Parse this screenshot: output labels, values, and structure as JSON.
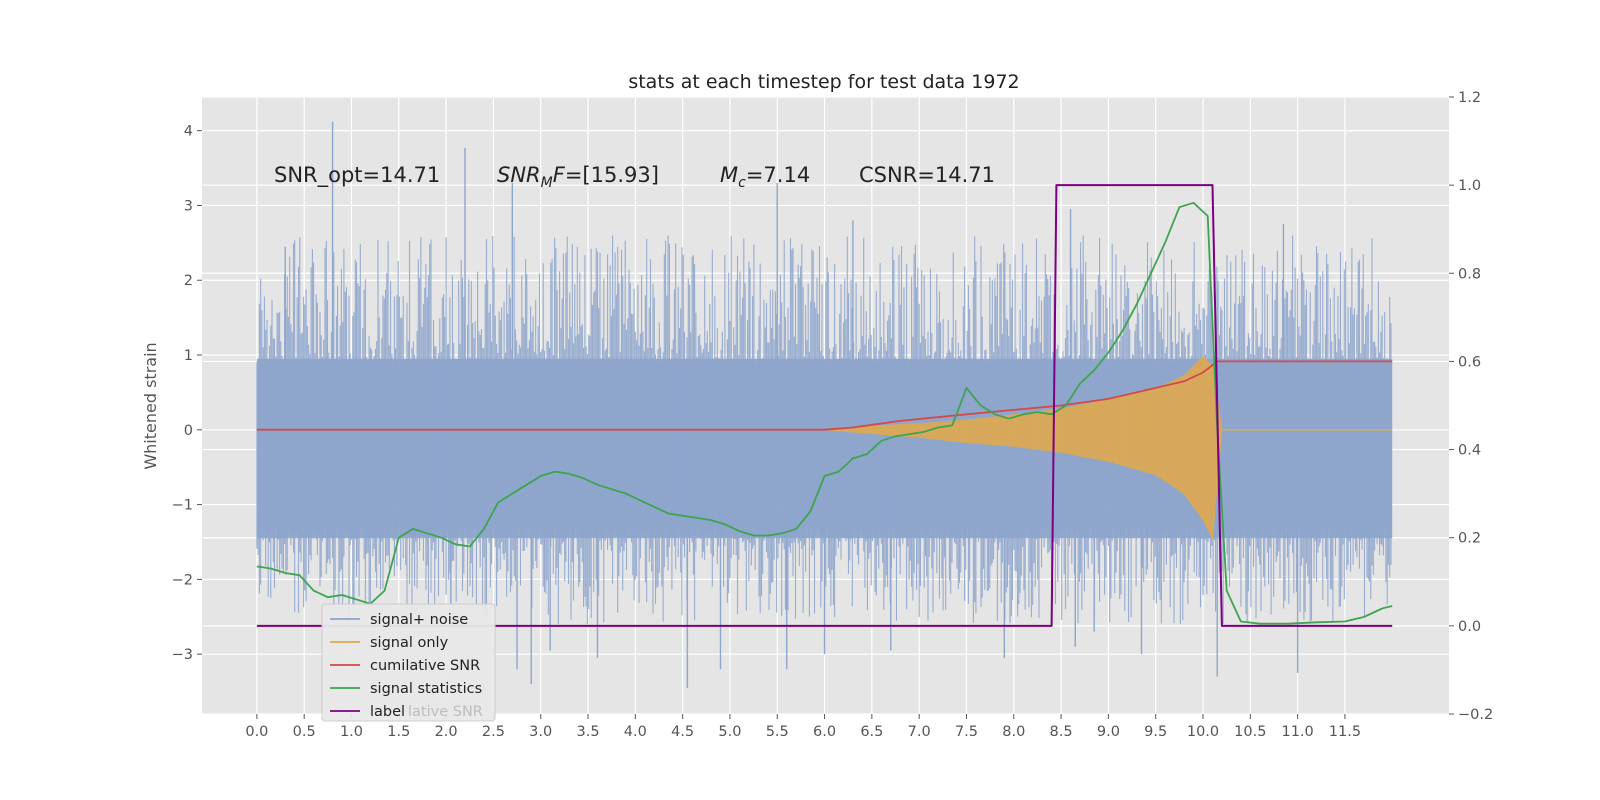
{
  "chart_data": {
    "type": "line",
    "title": "stats at each timestep for test data 1972",
    "ylabel": "Whitened strain",
    "xlabel": "",
    "xlim": [
      -0.58,
      12.6
    ],
    "ylim": [
      -3.8,
      4.45
    ],
    "y2lim": [
      -0.2,
      1.2
    ],
    "grid": true,
    "x_ticks": [
      "0.0",
      "0.5",
      "1.0",
      "1.5",
      "2.0",
      "2.5",
      "3.0",
      "3.5",
      "4.0",
      "4.5",
      "5.0",
      "5.5",
      "6.0",
      "6.5",
      "7.0",
      "7.5",
      "8.0",
      "8.5",
      "9.0",
      "9.5",
      "10.0",
      "10.5",
      "11.0",
      "11.5"
    ],
    "y_ticks": [
      "4",
      "3",
      "2",
      "1",
      "0",
      "−1",
      "−2",
      "−3"
    ],
    "y2_ticks": [
      "1.2",
      "1.0",
      "0.8",
      "0.6",
      "0.4",
      "0.2",
      "0.0",
      "−0.2"
    ],
    "annotations": [
      {
        "prefix": "SNR_opt=14.71",
        "sym": "",
        "sub": "",
        "suffix": ""
      },
      {
        "prefix": "",
        "sym": "SNR",
        "sub": "M",
        "suffix": "F=[15.93]"
      },
      {
        "prefix": "",
        "sym": "M",
        "sub": "c",
        "suffix": "=7.14"
      },
      {
        "prefix": "CSNR=14.71",
        "sym": "",
        "sub": "",
        "suffix": ""
      }
    ],
    "legend": {
      "placement": "lower-left",
      "entries": [
        "signal+ noise",
        "signal only",
        "cumilative SNR",
        "signal statistics",
        "label"
      ],
      "overlap_text": "lative SNR"
    },
    "colors": {
      "signal_noise": "#8ea5cc",
      "signal_only": "#e2a94c",
      "cumulative_snr": "#d2494b",
      "signal_statistics": "#3fa350",
      "label": "#7b0082",
      "plot_bg": "#e5e5e5",
      "grid": "#ffffff"
    },
    "series": [
      {
        "name": "signal+ noise",
        "axis": "left",
        "style": "noise",
        "x_range": [
          0.0,
          12.0
        ],
        "envelope": [
          -2.6,
          2.6
        ],
        "spikes": [
          [
            0.8,
            4.12
          ],
          [
            2.2,
            3.77
          ],
          [
            2.7,
            3.3
          ],
          [
            5.5,
            3.3
          ],
          [
            0.3,
            2.45
          ],
          [
            2.05,
            -2.35
          ],
          [
            2.75,
            -3.2
          ],
          [
            2.9,
            -3.4
          ],
          [
            3.1,
            -2.95
          ],
          [
            3.6,
            -3.05
          ],
          [
            4.55,
            -3.45
          ],
          [
            4.9,
            -3.2
          ],
          [
            5.6,
            -3.2
          ],
          [
            6.0,
            -3.0
          ],
          [
            6.7,
            -2.95
          ],
          [
            7.9,
            -3.05
          ],
          [
            8.65,
            -2.9
          ],
          [
            8.85,
            -2.7
          ],
          [
            9.35,
            -3.0
          ],
          [
            10.15,
            -3.3
          ],
          [
            11.0,
            -3.25
          ],
          [
            10.85,
            2.75
          ],
          [
            6.3,
            2.8
          ],
          [
            8.6,
            2.95
          ]
        ]
      },
      {
        "name": "signal only",
        "axis": "left",
        "style": "chirp",
        "x": [
          6.0,
          6.5,
          7.0,
          7.5,
          8.0,
          8.5,
          9.0,
          9.5,
          9.8,
          10.0,
          10.1,
          10.2
        ],
        "upper": [
          0.0,
          0.05,
          0.08,
          0.13,
          0.2,
          0.28,
          0.4,
          0.55,
          0.72,
          0.98,
          0.85,
          0.0
        ],
        "lower": [
          0.0,
          -0.05,
          -0.1,
          -0.17,
          -0.22,
          -0.3,
          -0.42,
          -0.6,
          -0.85,
          -1.2,
          -1.45,
          0.0
        ]
      },
      {
        "name": "cumilative SNR",
        "axis": "right",
        "x": [
          0.0,
          6.0,
          6.3,
          6.8,
          7.5,
          8.0,
          8.5,
          9.0,
          9.5,
          9.8,
          10.0,
          10.15,
          10.2,
          12.0
        ],
        "y": [
          0.445,
          0.445,
          0.45,
          0.465,
          0.48,
          0.49,
          0.5,
          0.515,
          0.54,
          0.555,
          0.575,
          0.6,
          0.6,
          0.6
        ]
      },
      {
        "name": "signal statistics",
        "axis": "right",
        "x": [
          0.0,
          0.15,
          0.3,
          0.45,
          0.6,
          0.75,
          0.9,
          1.05,
          1.2,
          1.35,
          1.5,
          1.65,
          1.8,
          1.95,
          2.1,
          2.25,
          2.4,
          2.55,
          2.7,
          2.85,
          3.0,
          3.15,
          3.3,
          3.45,
          3.6,
          3.75,
          3.9,
          4.05,
          4.2,
          4.35,
          4.5,
          4.65,
          4.8,
          4.95,
          5.1,
          5.25,
          5.4,
          5.55,
          5.7,
          5.85,
          6.0,
          6.15,
          6.3,
          6.45,
          6.6,
          6.75,
          6.9,
          7.05,
          7.2,
          7.35,
          7.5,
          7.65,
          7.8,
          7.95,
          8.1,
          8.25,
          8.4,
          8.55,
          8.7,
          8.85,
          9.0,
          9.15,
          9.3,
          9.45,
          9.6,
          9.75,
          9.9,
          10.05,
          10.15,
          10.25,
          10.4,
          10.6,
          10.9,
          11.2,
          11.5,
          11.7,
          11.9,
          12.0
        ],
        "y": [
          0.135,
          0.13,
          0.12,
          0.115,
          0.08,
          0.065,
          0.07,
          0.06,
          0.05,
          0.08,
          0.2,
          0.22,
          0.21,
          0.2,
          0.185,
          0.18,
          0.22,
          0.28,
          0.3,
          0.32,
          0.34,
          0.35,
          0.345,
          0.335,
          0.32,
          0.31,
          0.3,
          0.285,
          0.27,
          0.255,
          0.25,
          0.245,
          0.24,
          0.23,
          0.215,
          0.205,
          0.205,
          0.21,
          0.22,
          0.26,
          0.34,
          0.35,
          0.38,
          0.39,
          0.42,
          0.43,
          0.435,
          0.44,
          0.45,
          0.455,
          0.54,
          0.5,
          0.48,
          0.47,
          0.48,
          0.485,
          0.48,
          0.5,
          0.55,
          0.58,
          0.62,
          0.67,
          0.73,
          0.8,
          0.87,
          0.95,
          0.96,
          0.93,
          0.45,
          0.08,
          0.01,
          0.005,
          0.005,
          0.008,
          0.01,
          0.02,
          0.04,
          0.045
        ]
      },
      {
        "name": "label",
        "axis": "right",
        "x": [
          0.0,
          8.4,
          8.45,
          10.1,
          10.2,
          12.0
        ],
        "y": [
          0.0,
          0.0,
          1.0,
          1.0,
          0.0,
          0.0
        ]
      }
    ]
  }
}
